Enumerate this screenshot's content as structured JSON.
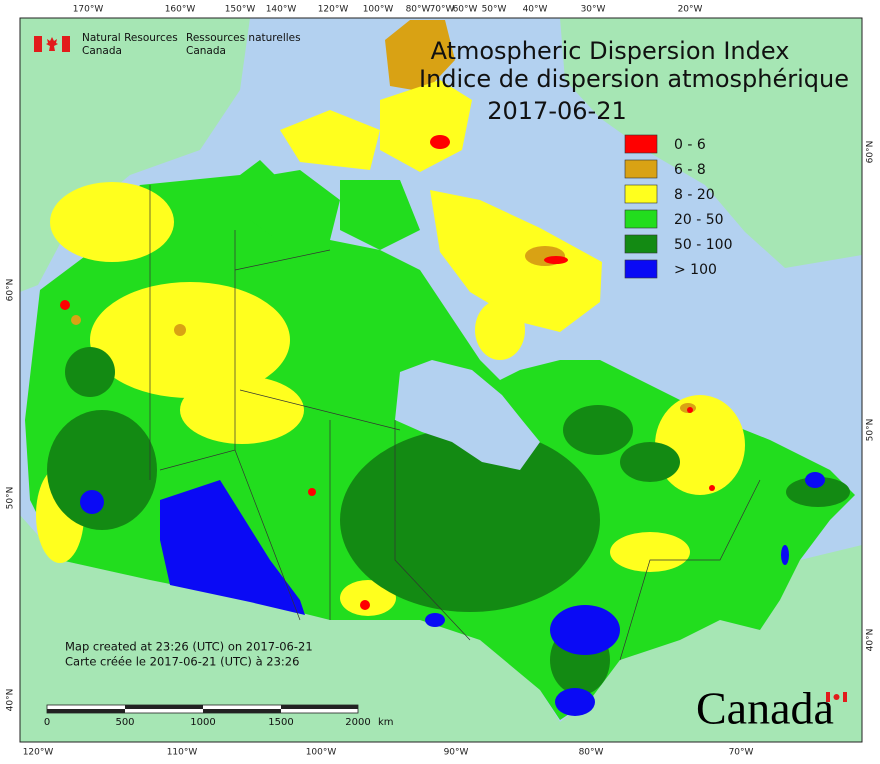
{
  "agency": {
    "en_line1": "Natural Resources",
    "en_line2": "Canada",
    "fr_line1": "Ressources naturelles",
    "fr_line2": "Canada"
  },
  "title": {
    "en": "Atmospheric Dispersion Index",
    "fr": "Indice de dispersion atmosphérique",
    "date": "2017-06-21"
  },
  "legend": [
    {
      "label": "0 - 6",
      "color": "#ff0000"
    },
    {
      "label": "6 - 8",
      "color": "#d9a214"
    },
    {
      "label": "8 - 20",
      "color": "#ffff1e"
    },
    {
      "label": "20 - 50",
      "color": "#22dd1e"
    },
    {
      "label": "50 - 100",
      "color": "#138a13"
    },
    {
      "label": "> 100",
      "color": "#0a0af5"
    }
  ],
  "graticule": {
    "top": [
      "170°W",
      "160°W",
      "150°W",
      "140°W",
      "120°W",
      "100°W",
      "80°W",
      "70°W",
      "60°W",
      "50°W",
      "40°W",
      "30°W",
      "20°W"
    ],
    "bottom": [
      "120°W",
      "110°W",
      "100°W",
      "90°W",
      "80°W",
      "70°W"
    ],
    "left": [
      "60°N",
      "50°N",
      "40°N"
    ],
    "right": [
      "60°N",
      "50°N",
      "40°N"
    ]
  },
  "footer_note": {
    "en": "Map created at 23:26 (UTC) on 2017-06-21",
    "fr": "Carte créée le 2017-06-21 (UTC) à 23:26"
  },
  "scale_bar": {
    "labels": [
      "0",
      "500",
      "1000",
      "1500",
      "2000"
    ],
    "unit": "km"
  },
  "wordmark": "Canada"
}
